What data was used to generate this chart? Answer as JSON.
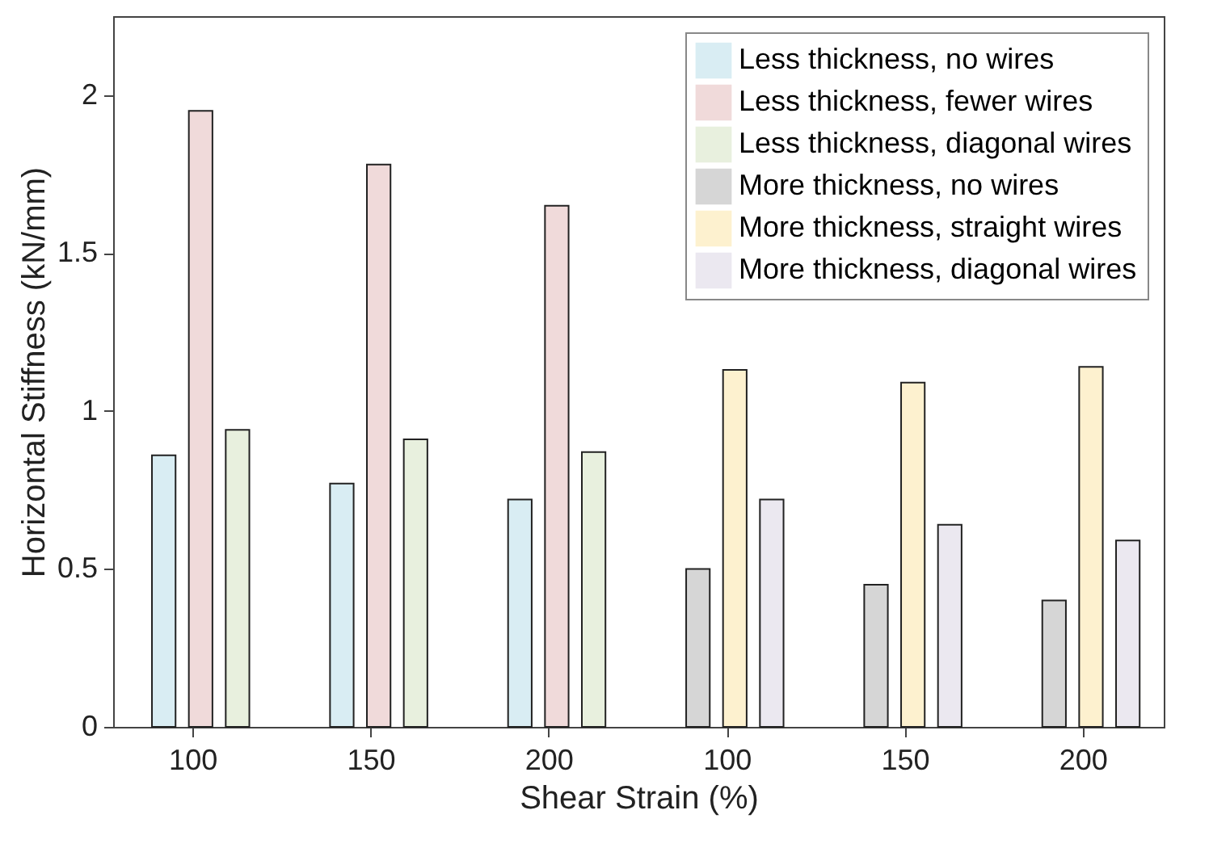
{
  "chart_data": {
    "type": "bar",
    "xlabel": "Shear Strain (%)",
    "ylabel": "Horizontal Stiffness (kN/mm)",
    "categories": [
      "100",
      "150",
      "200",
      "100",
      "150",
      "200"
    ],
    "series": [
      {
        "name": "Less thickness, no wires",
        "color": "#d9edf3",
        "values": [
          0.86,
          0.77,
          0.72,
          null,
          null,
          null
        ]
      },
      {
        "name": "Less thickness, fewer wires",
        "color": "#f0dada",
        "values": [
          1.95,
          1.78,
          1.65,
          null,
          null,
          null
        ]
      },
      {
        "name": "Less thickness, diagonal wires",
        "color": "#e8f0de",
        "values": [
          0.94,
          0.91,
          0.87,
          null,
          null,
          null
        ]
      },
      {
        "name": "More thickness, no wires",
        "color": "#d6d6d6",
        "values": [
          null,
          null,
          null,
          0.5,
          0.45,
          0.4
        ]
      },
      {
        "name": "More thickness, straight wires",
        "color": "#fdf1cf",
        "values": [
          null,
          null,
          null,
          1.13,
          1.09,
          1.14
        ]
      },
      {
        "name": "More thickness, diagonal wires",
        "color": "#ebe8f0",
        "values": [
          null,
          null,
          null,
          0.72,
          0.64,
          0.59
        ]
      }
    ],
    "ylim": [
      0,
      2.25
    ],
    "yticks": [
      0,
      0.5,
      1,
      1.5,
      2
    ],
    "legend": "top right"
  }
}
